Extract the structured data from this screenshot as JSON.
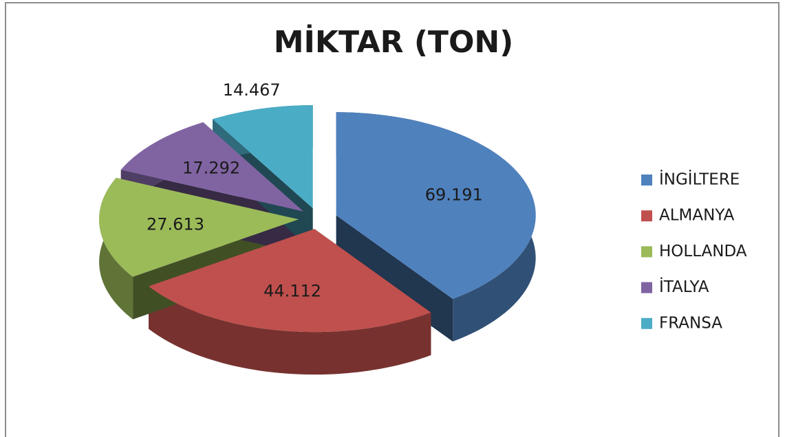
{
  "chart_data": {
    "type": "pie3d",
    "title": "MİKTAR (TON)",
    "categories": [
      "İNGİLTERE",
      "ALMANYA",
      "HOLLANDA",
      "İTALYA",
      "FRANSA"
    ],
    "values": [
      69.191,
      44.112,
      27.613,
      17.292,
      14.467
    ],
    "colors": [
      "#4f81bd",
      "#c0504d",
      "#9bbb59",
      "#8064a2",
      "#4bacc6"
    ],
    "legend": "right"
  }
}
